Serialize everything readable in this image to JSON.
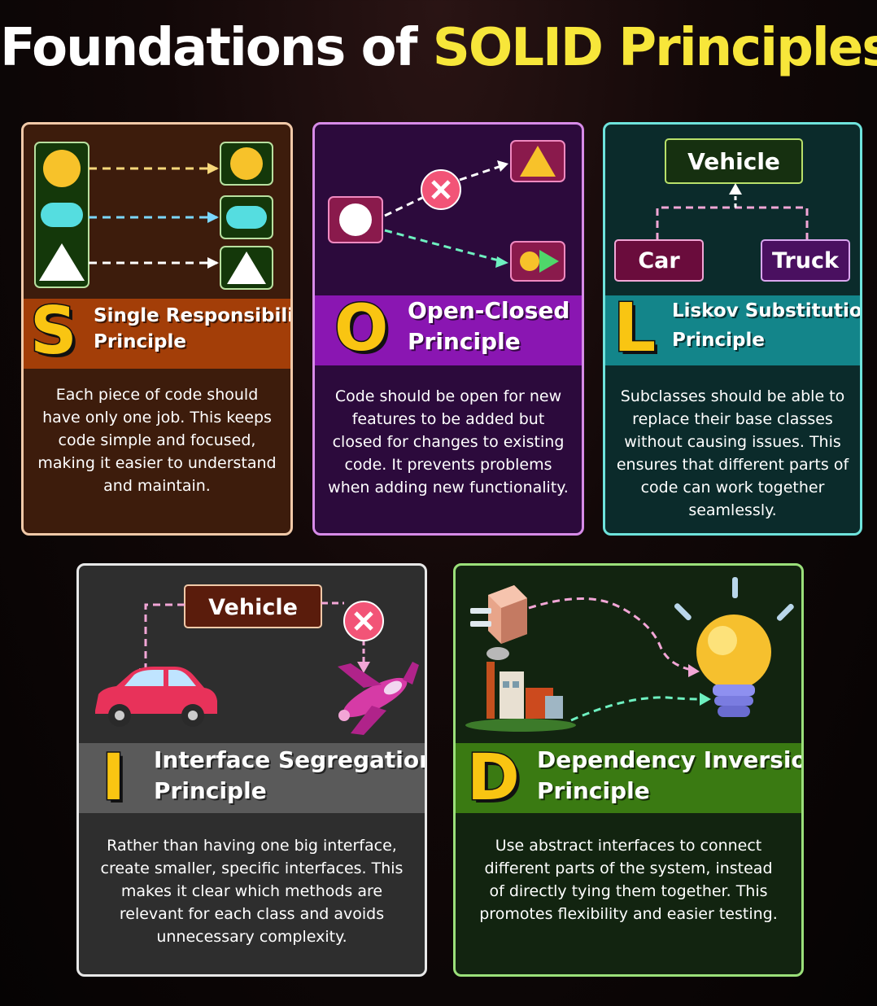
{
  "title": {
    "main": "Foundations of ",
    "highlight": "SOLID Principles"
  },
  "cards": {
    "s": {
      "letter": "S",
      "name_line1": "Single Responsibility",
      "name_line2": "Principle",
      "description": "Each piece of code should have only one job. This keeps code simple and focused, making it easier to understand and maintain.",
      "colors": {
        "border": "#f1c9a8",
        "bg": "#3d1c0c",
        "band": "#a33e08"
      }
    },
    "o": {
      "letter": "O",
      "name_line1": "Open-Closed",
      "name_line2": "Principle",
      "description": "Code should be open for new features to be added but closed for changes to existing code. It prevents problems when adding new functionality.",
      "colors": {
        "border": "#d78be8",
        "bg": "#2c0a3c",
        "band": "#8a16b2"
      }
    },
    "l": {
      "letter": "L",
      "name_line1": "Liskov Substitution",
      "name_line2": "Principle",
      "description": "Subclasses should be able to replace their base classes without causing issues. This ensures that different parts of code can work together seamlessly.",
      "diagram": {
        "base": "Vehicle",
        "child1": "Car",
        "child2": "Truck"
      },
      "colors": {
        "border": "#6ee3dc",
        "bg": "#0b2b2b",
        "band": "#13858a"
      }
    },
    "i": {
      "letter": "I",
      "name_line1": "Interface Segregation",
      "name_line2": "Principle",
      "description": "Rather than having one big interface, create smaller, specific interfaces. This makes it clear which methods are relevant for each class and avoids unnecessary complexity.",
      "diagram": {
        "base": "Vehicle"
      },
      "colors": {
        "border": "#e8e8e8",
        "bg": "#2e2e2e",
        "band": "#5a5a5a"
      }
    },
    "d": {
      "letter": "D",
      "name_line1": "Dependency Inversion",
      "name_line2": "Principle",
      "description": "Use abstract interfaces to connect different parts of the system, instead of directly tying them together. This promotes flexibility and easier testing.",
      "colors": {
        "border": "#9be07a",
        "bg": "#122410",
        "band": "#3a7a12"
      }
    }
  },
  "icons": {
    "s": [
      "circle-icon",
      "pill-icon",
      "triangle-icon"
    ],
    "o": [
      "circle-icon",
      "cross-icon",
      "triangle-icon",
      "circle-triangle-icon"
    ],
    "i": [
      "car-icon",
      "airplane-icon",
      "cross-icon"
    ],
    "d": [
      "plug-icon",
      "factory-icon",
      "lightbulb-icon"
    ]
  }
}
